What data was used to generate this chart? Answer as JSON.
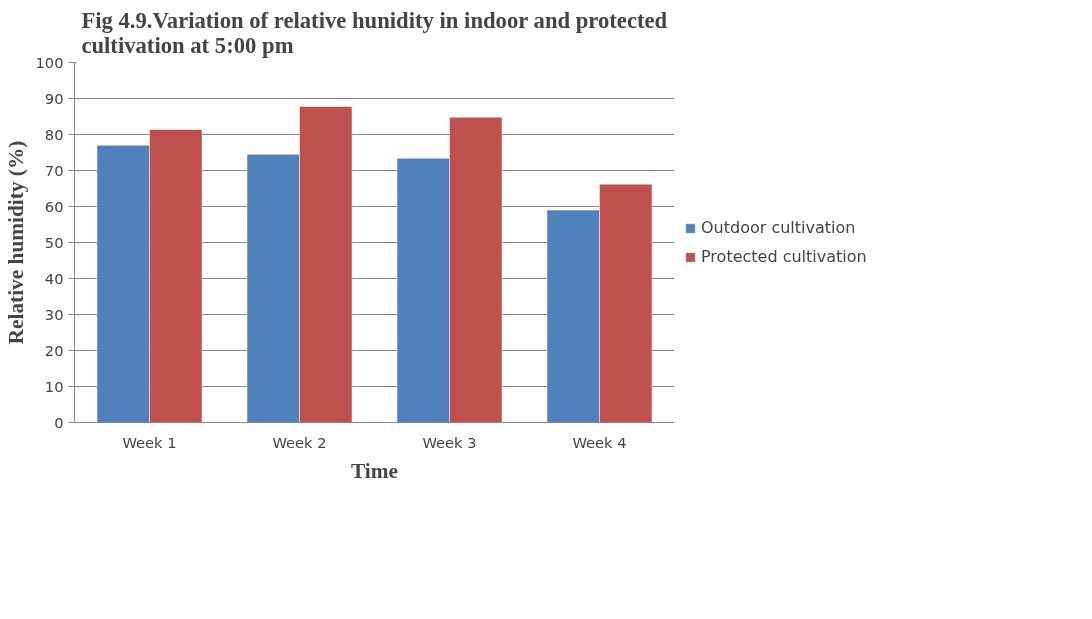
{
  "chart_data": {
    "type": "bar",
    "title": "Fig 4.9.Variation of relative hunidity in indoor and protected\ncultivation at 5:00 pm",
    "xlabel": "Time",
    "ylabel": "Relative humidity (%)",
    "categories": [
      "Week 1",
      "Week 2",
      "Week 3",
      "Week 4"
    ],
    "series": [
      {
        "name": "Outdoor cultivation",
        "color": "#4f81bd",
        "values": [
          77,
          74.5,
          73.4,
          59
        ]
      },
      {
        "name": "Protected cultivation",
        "color": "#c0504d",
        "values": [
          81.4,
          87.8,
          84.8,
          66.2
        ]
      }
    ],
    "ylim": [
      0,
      100
    ],
    "yticks": [
      0,
      10,
      20,
      30,
      40,
      50,
      60,
      70,
      80,
      90,
      100
    ],
    "grid": "y",
    "legend": "right"
  }
}
